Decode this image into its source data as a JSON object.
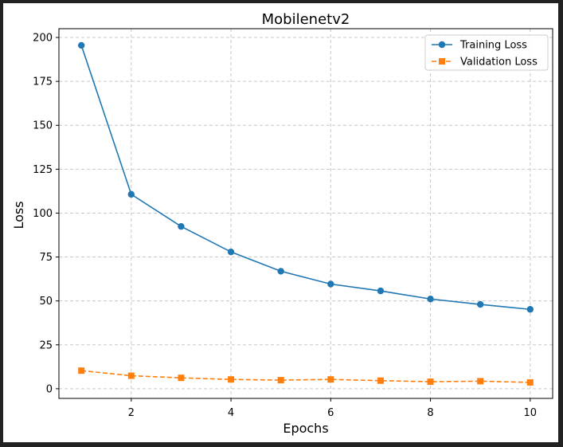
{
  "chart_data": {
    "type": "line",
    "title": "Mobilenetv2",
    "xlabel": "Epochs",
    "ylabel": "Loss",
    "x": [
      1,
      2,
      3,
      4,
      5,
      6,
      7,
      8,
      9,
      10
    ],
    "xticks": [
      2,
      4,
      6,
      8,
      10
    ],
    "yticks": [
      0,
      25,
      50,
      75,
      100,
      125,
      150,
      175,
      200
    ],
    "xlim": [
      0.55,
      10.45
    ],
    "ylim": [
      -5.5,
      205
    ],
    "grid": true,
    "legend_position": "top-right",
    "series": [
      {
        "name": "Training Loss",
        "values": [
          195.5,
          110.7,
          92.4,
          77.9,
          66.9,
          59.6,
          55.7,
          51.1,
          48.0,
          45.2
        ],
        "color": "#1f77b4",
        "linestyle": "solid",
        "marker": "circle"
      },
      {
        "name": "Validation Loss",
        "values": [
          10.3,
          7.4,
          6.2,
          5.3,
          4.9,
          5.3,
          4.6,
          4.0,
          4.3,
          3.6
        ],
        "color": "#ff7f0e",
        "linestyle": "dashed",
        "marker": "square"
      }
    ]
  }
}
